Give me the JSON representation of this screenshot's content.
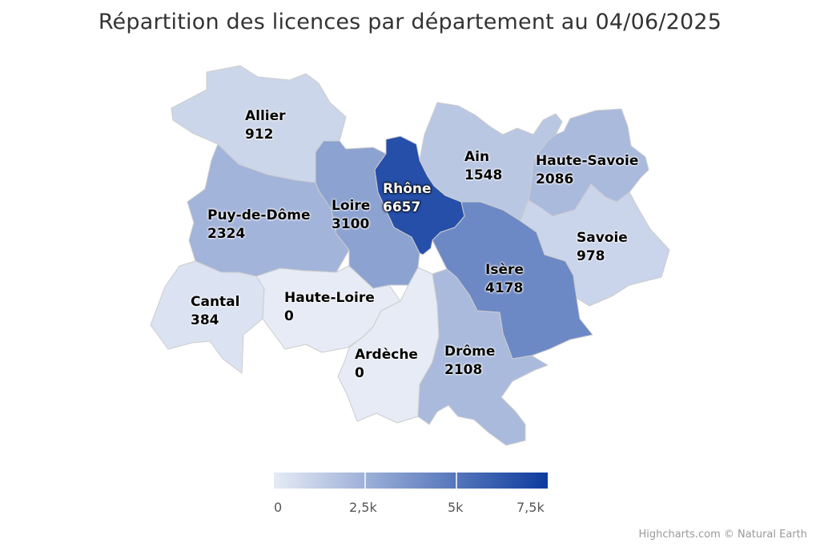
{
  "title": "Répartition des licences par département au 04/06/2025",
  "credits": "Highcharts.com © Natural Earth",
  "colors": {
    "min": "#e6ebf5",
    "max": "#0d3b9e",
    "border": "#cccccc"
  },
  "chart_data": {
    "type": "heatmap",
    "title": "Répartition des licences par département au 04/06/2025",
    "color_axis": {
      "min": 0,
      "max": 7500,
      "ticks": [
        "0",
        "2,5k",
        "5k",
        "7,5k"
      ]
    },
    "departments": [
      {
        "name": "Allier",
        "value": 912
      },
      {
        "name": "Puy-de-Dôme",
        "value": 2324
      },
      {
        "name": "Cantal",
        "value": 384
      },
      {
        "name": "Haute-Loire",
        "value": 0
      },
      {
        "name": "Loire",
        "value": 3100
      },
      {
        "name": "Rhône",
        "value": 6657
      },
      {
        "name": "Ain",
        "value": 1548
      },
      {
        "name": "Haute-Savoie",
        "value": 2086
      },
      {
        "name": "Savoie",
        "value": 978
      },
      {
        "name": "Isère",
        "value": 4178
      },
      {
        "name": "Drôme",
        "value": 2108
      },
      {
        "name": "Ardèche",
        "value": 0
      }
    ]
  }
}
